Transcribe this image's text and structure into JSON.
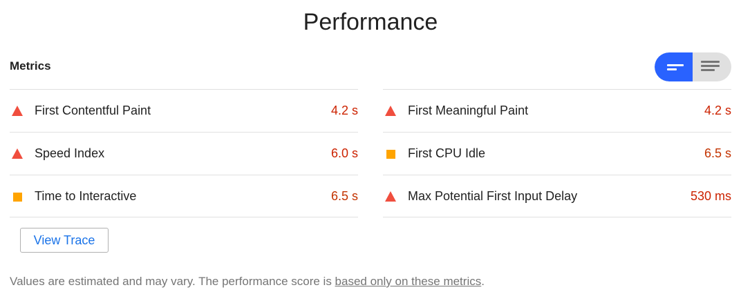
{
  "title": "Performance",
  "metrics": {
    "label": "Metrics",
    "view_toggle": {
      "active": "expanded"
    },
    "left": [
      {
        "name": "First Contentful Paint",
        "value": "4.2 s",
        "status": "fail",
        "color": "#cc2200"
      },
      {
        "name": "Speed Index",
        "value": "6.0 s",
        "status": "fail",
        "color": "#cc2200"
      },
      {
        "name": "Time to Interactive",
        "value": "6.5 s",
        "status": "average",
        "color": "#c33300"
      }
    ],
    "right": [
      {
        "name": "First Meaningful Paint",
        "value": "4.2 s",
        "status": "fail",
        "color": "#cc2200"
      },
      {
        "name": "First CPU Idle",
        "value": "6.5 s",
        "status": "average",
        "color": "#c33300"
      },
      {
        "name": "Max Potential First Input Delay",
        "value": "530 ms",
        "status": "fail",
        "color": "#cc2200"
      }
    ]
  },
  "view_trace_label": "View Trace",
  "footnote": {
    "prefix": "Values are estimated and may vary. The performance score is ",
    "link": "based only on these metrics",
    "suffix": "."
  },
  "colors": {
    "fail": "#f04e3e",
    "average": "#ffa400",
    "accent": "#2962ff",
    "link": "#1a73e8"
  }
}
